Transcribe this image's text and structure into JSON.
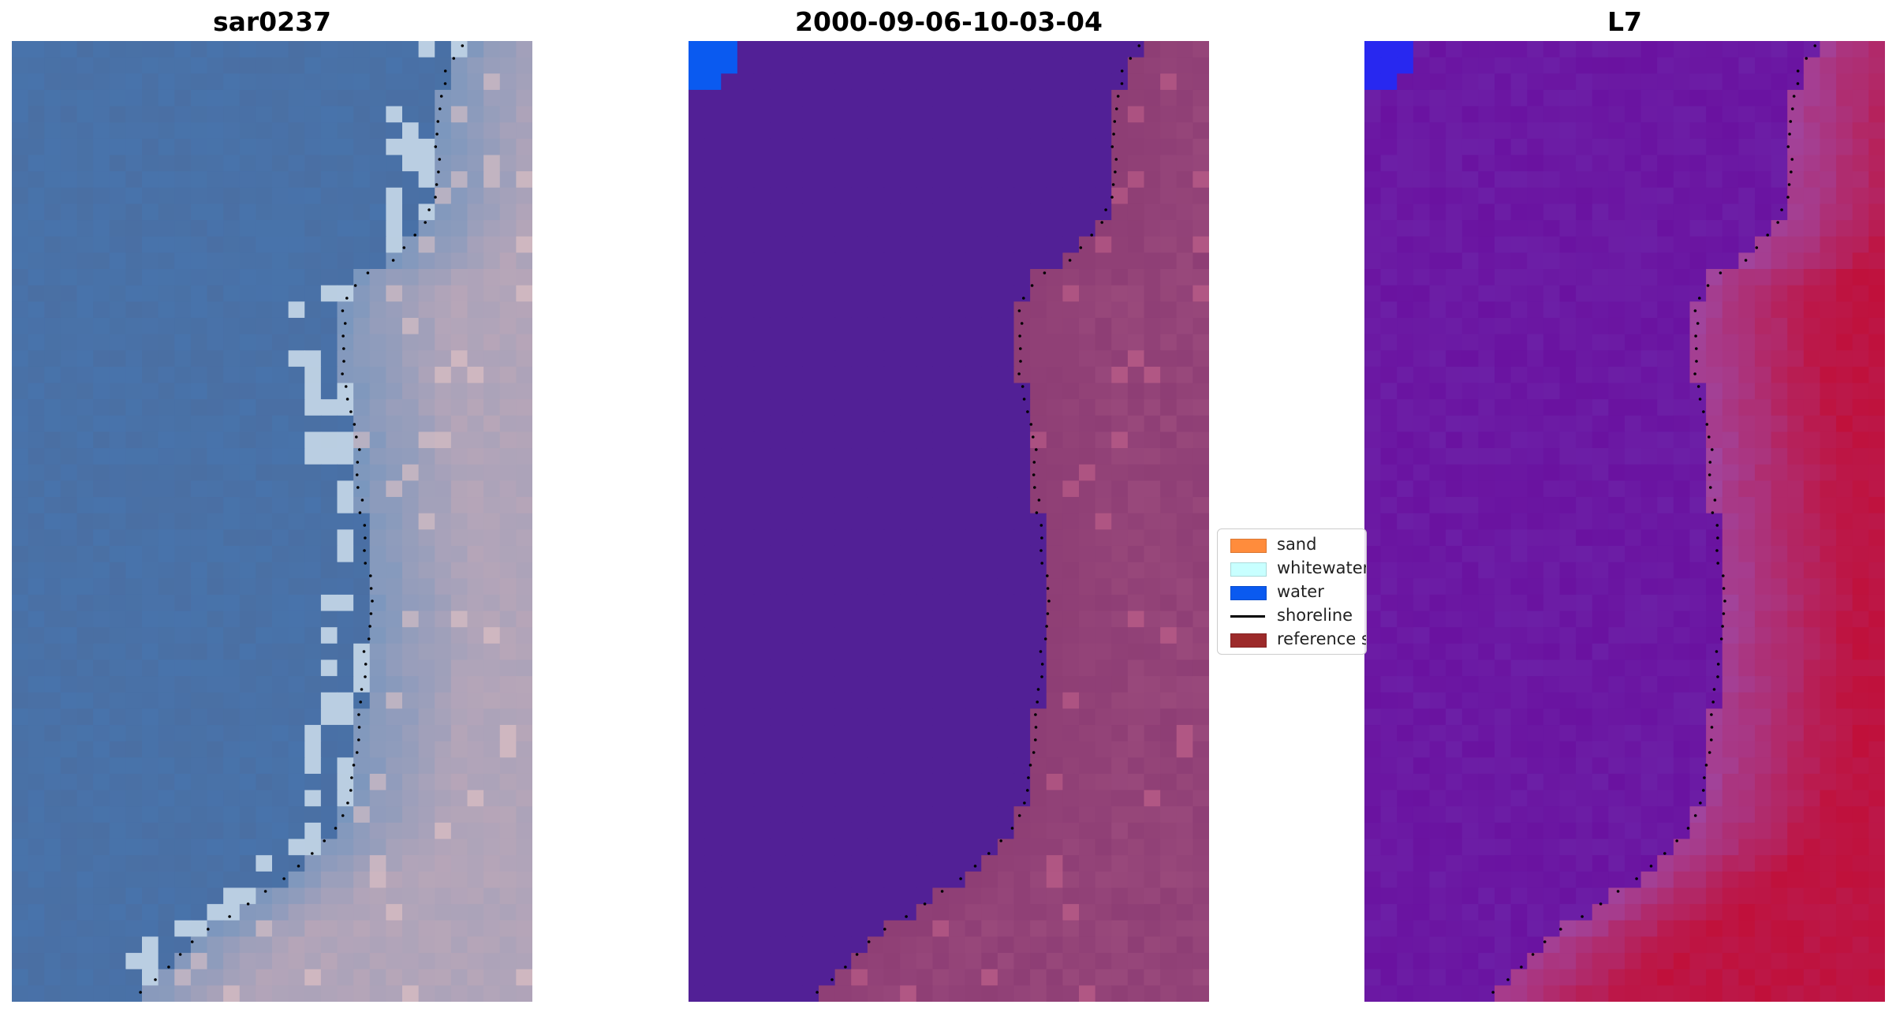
{
  "panels": [
    {
      "title": "sar0237",
      "image": "RGB satellite image of coastline with dotted shoreline"
    },
    {
      "title": "2000-09-06-10-03-04",
      "image": "classified image with dotted shoreline"
    },
    {
      "title": "L7",
      "image": "water index image with dotted shoreline"
    }
  ],
  "legend": {
    "items": [
      {
        "label": "sand",
        "color": "#ff8c3c",
        "kind": "patch"
      },
      {
        "label": "whitewater",
        "color": "#c8ffff",
        "kind": "patch"
      },
      {
        "label": "water",
        "color": "#0a5af0",
        "kind": "patch"
      },
      {
        "label": "shoreline",
        "color": "#000000",
        "kind": "line"
      },
      {
        "label": "reference shoreline",
        "color": "#9c2a2a",
        "kind": "patch"
      }
    ]
  },
  "colors": {
    "rgb_water": "#4a6fa3",
    "rgb_land": "#b8a6b8",
    "class_water": "#522096",
    "class_land": "#9a4a7c",
    "class_blue": "#0a5af0",
    "index_low": "#6a12a0",
    "index_high": "#c0103a"
  }
}
